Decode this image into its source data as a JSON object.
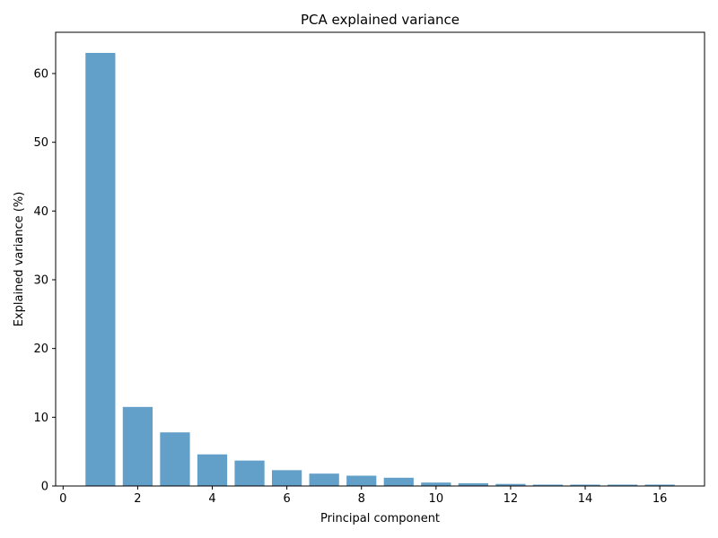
{
  "chart_data": {
    "type": "bar",
    "title": "PCA explained variance",
    "xlabel": "Principal component",
    "ylabel": "Explained variance (%)",
    "x": [
      1,
      2,
      3,
      4,
      5,
      6,
      7,
      8,
      9,
      10,
      11,
      12,
      13,
      14,
      15,
      16
    ],
    "values": [
      63.0,
      11.5,
      7.8,
      4.6,
      3.7,
      2.3,
      1.8,
      1.5,
      1.2,
      0.5,
      0.4,
      0.3,
      0.2,
      0.2,
      0.2,
      0.2
    ],
    "xlim": [
      -0.2,
      17.2
    ],
    "ylim": [
      0,
      66
    ],
    "x_ticks": [
      0,
      2,
      4,
      6,
      8,
      10,
      12,
      14,
      16
    ],
    "y_ticks": [
      0,
      10,
      20,
      30,
      40,
      50,
      60
    ],
    "bar_color": "#1f77b4",
    "bar_opacity": 0.7,
    "grid": false,
    "legend": "none"
  }
}
